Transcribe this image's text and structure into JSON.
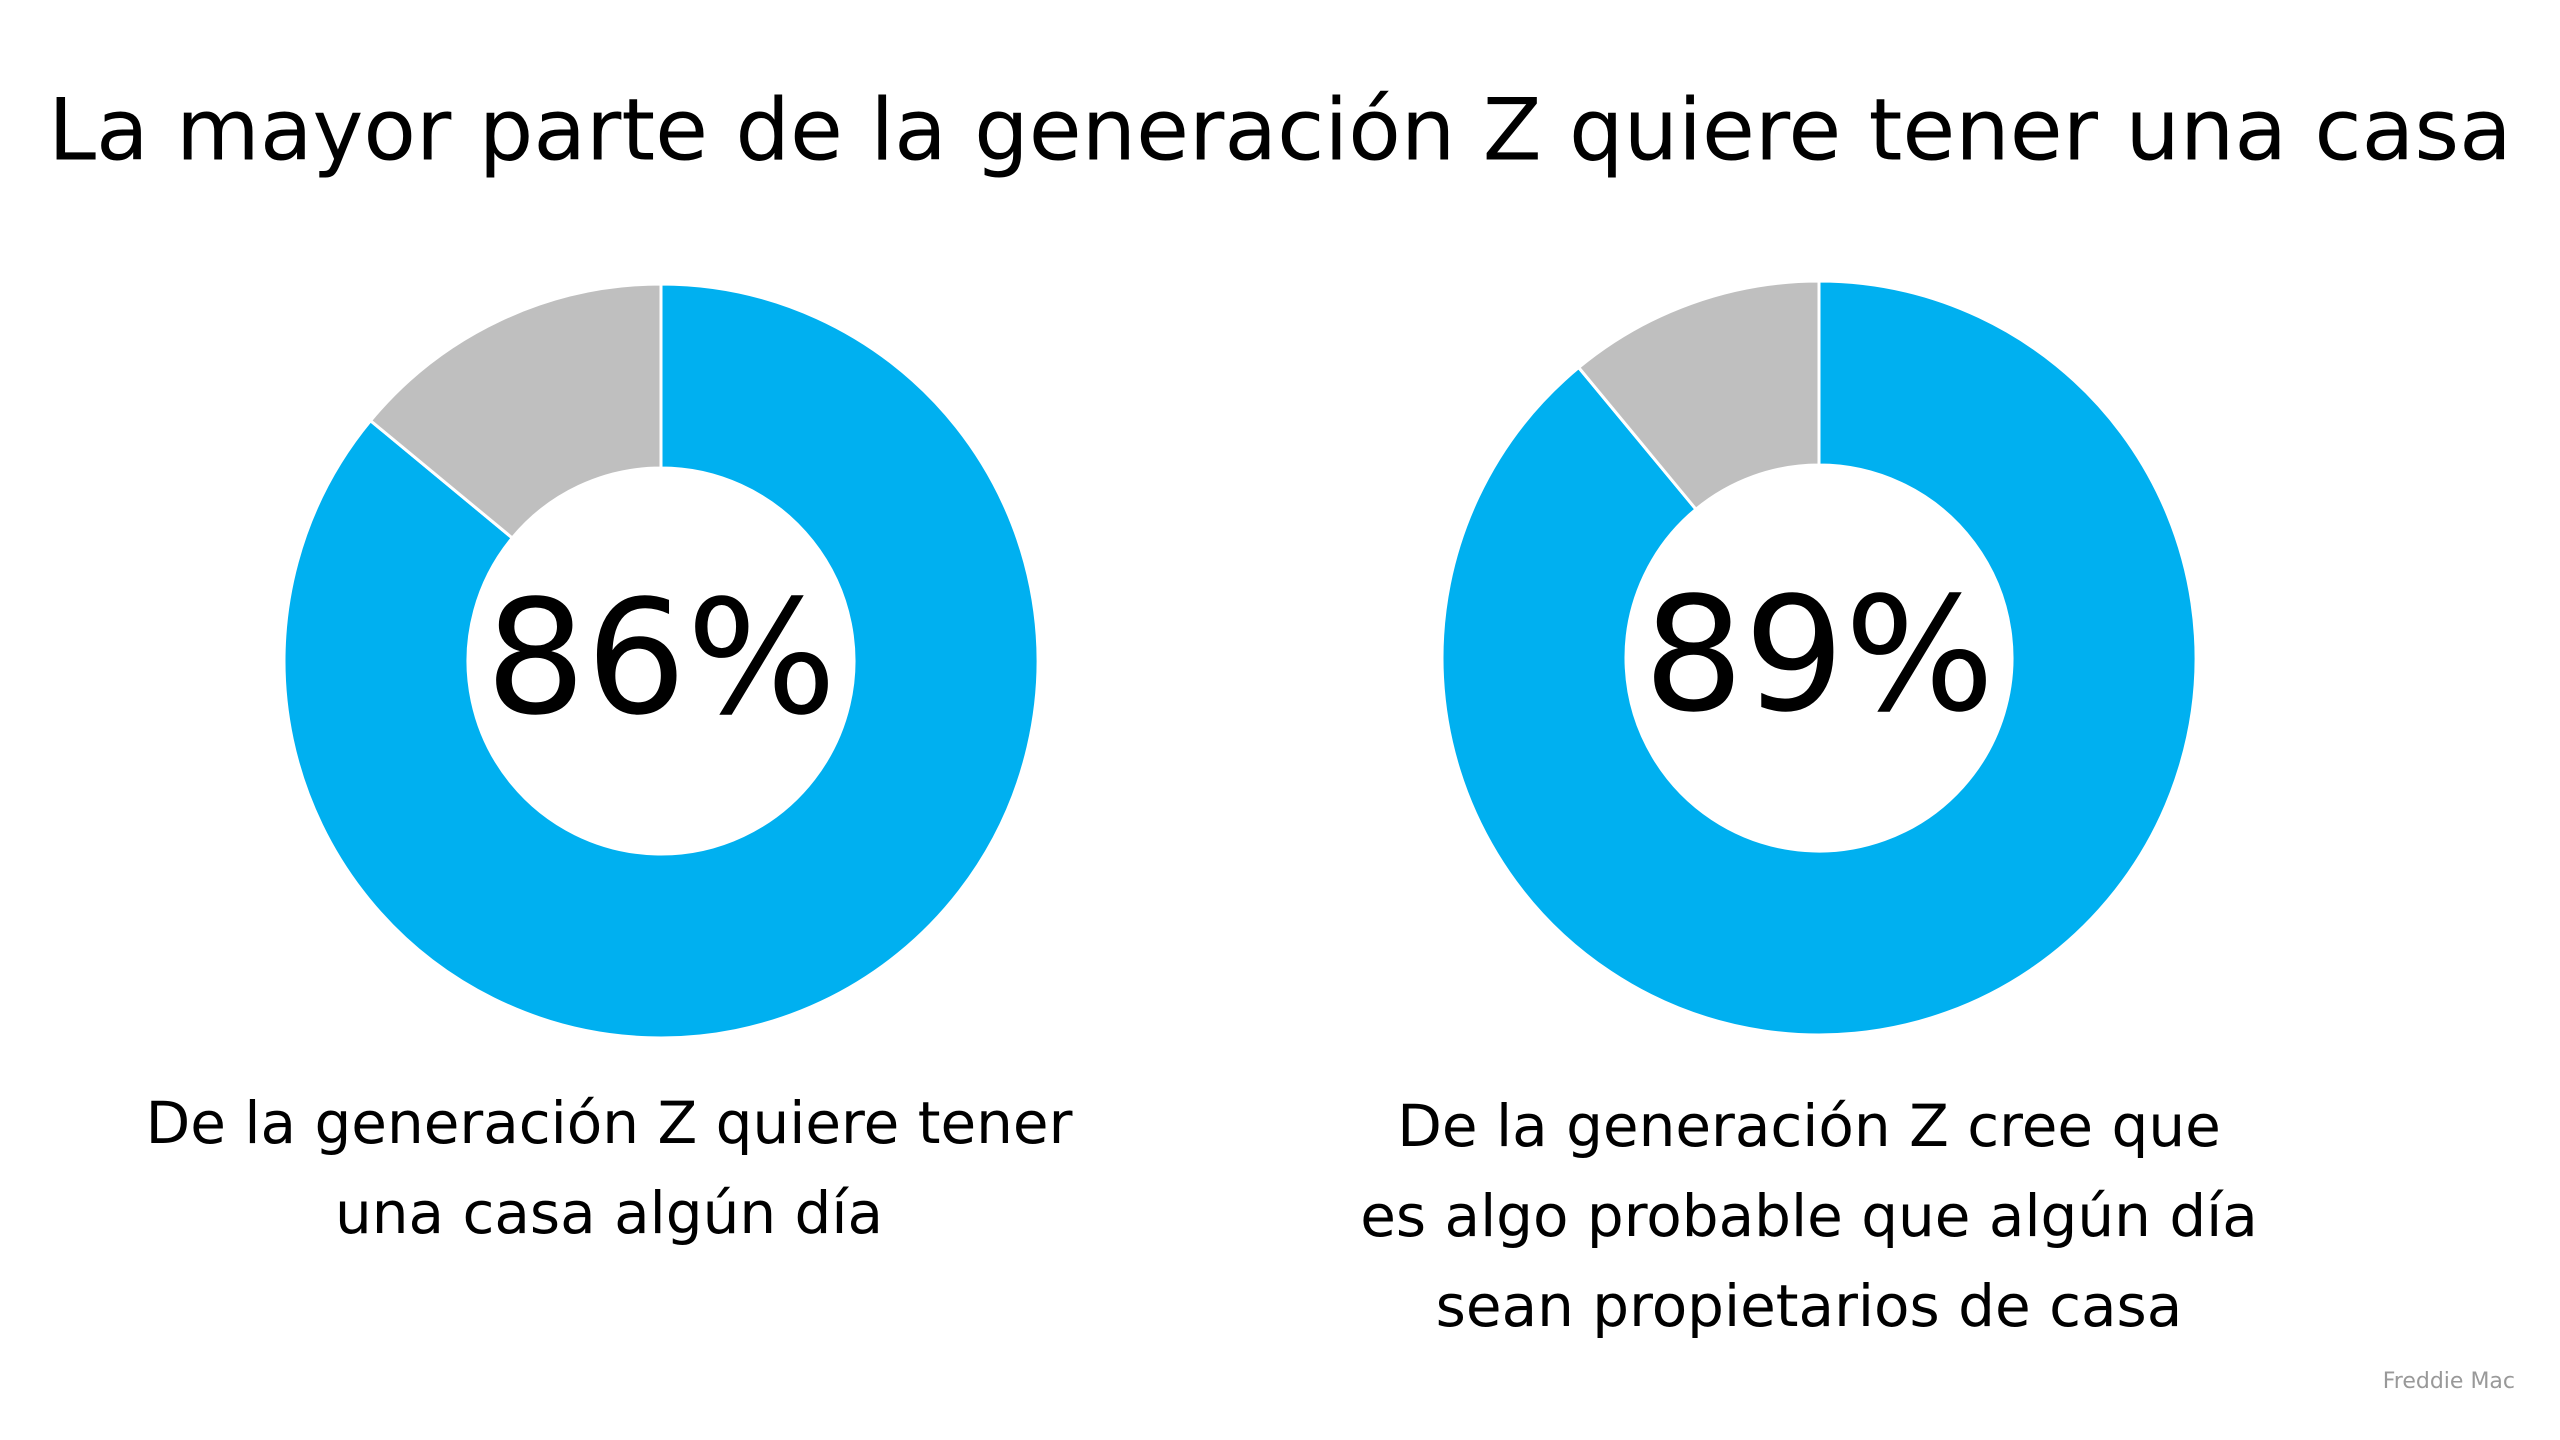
{
  "title": "La mayor parte de la generación Z quiere tener una casa",
  "source": "Freddie Mac",
  "chart_data": [
    {
      "type": "donut",
      "values": [
        86,
        14
      ],
      "value_labels": [
        "86%",
        null
      ],
      "colors": [
        "#00b0f0",
        "#bfbfbf"
      ],
      "caption": [
        "De la generación Z quiere tener",
        "una casa algún día"
      ]
    },
    {
      "type": "donut",
      "values": [
        89,
        11
      ],
      "value_labels": [
        "89%",
        null
      ],
      "colors": [
        "#00b0f0",
        "#bfbfbf"
      ],
      "caption": [
        "De la generación Z cree que",
        "es algo probable que algún día",
        "sean propietarios de casa"
      ]
    }
  ]
}
